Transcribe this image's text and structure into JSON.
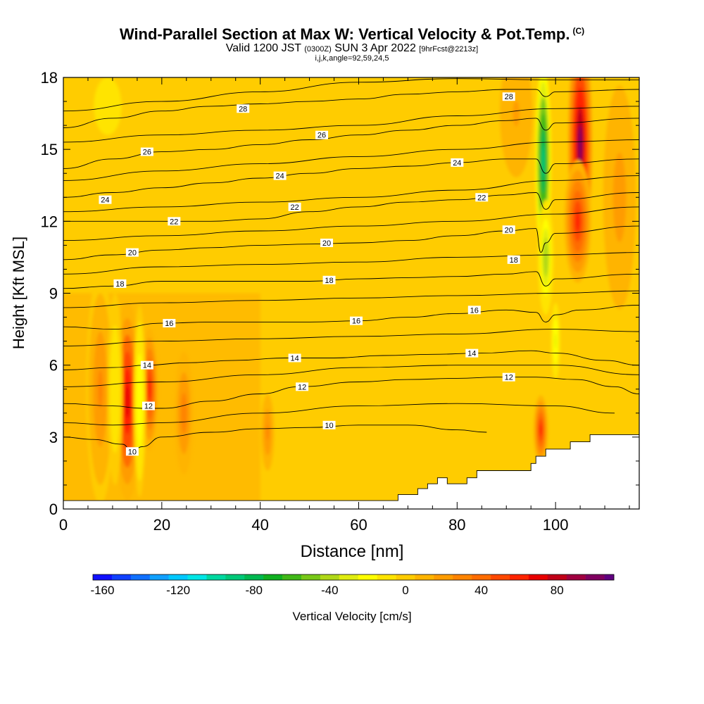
{
  "header": {
    "title": "Wind-Parallel Section at Max W: Vertical Velocity & Pot.Temp.",
    "copyright": "(C)",
    "valid_prefix": "Valid 1200 JST",
    "valid_utc": "(0300Z)",
    "valid_date": "SUN 3 Apr 2022",
    "forecast": "[9hrFcst@2213z]",
    "indices": "i,j,k,angle=92,59,24,5"
  },
  "chart_data": {
    "type": "heatmap",
    "title": "Wind-Parallel Section at Max W: Vertical Velocity & Pot.Temp.",
    "xlabel": "Distance [nm]",
    "ylabel": "Height [Kft MSL]",
    "xlim": [
      0,
      117
    ],
    "ylim": [
      0,
      18
    ],
    "x_ticks": [
      0,
      20,
      40,
      60,
      80,
      100
    ],
    "y_ticks": [
      0,
      3,
      6,
      9,
      12,
      15,
      18
    ],
    "colorbar": {
      "label": "Vertical Velocity [cm/s]",
      "ticks": [
        -160,
        -120,
        -80,
        -40,
        0,
        40,
        80
      ],
      "min": -165,
      "max": 110,
      "step": 10,
      "colors": [
        "#1010ff",
        "#1040ff",
        "#1070ff",
        "#10a0ff",
        "#00c8ff",
        "#00e6e6",
        "#00d8a0",
        "#00c878",
        "#00b850",
        "#10b020",
        "#40b818",
        "#78c818",
        "#b0d818",
        "#e0ec10",
        "#ffff00",
        "#ffe400",
        "#ffcc00",
        "#ffb400",
        "#ff9c00",
        "#ff8400",
        "#ff6c00",
        "#ff4800",
        "#ff2400",
        "#e80000",
        "#c00018",
        "#a00040",
        "#800060",
        "#600080"
      ]
    },
    "updrafts": [
      {
        "x": 13,
        "y": 4.5,
        "peak": 70,
        "width_nm": 1.7,
        "height_kft": 2.6
      },
      {
        "x": 17.5,
        "y": 5.0,
        "peak": 55,
        "width_nm": 1.1,
        "height_kft": 1.6
      },
      {
        "x": 7.5,
        "y": 5.0,
        "peak": 25,
        "width_nm": 1.8,
        "height_kft": 3.0
      },
      {
        "x": 24.5,
        "y": 4.0,
        "peak": 30,
        "width_nm": 1.2,
        "height_kft": 1.6
      },
      {
        "x": 41.5,
        "y": 3.2,
        "peak": 25,
        "width_nm": 1.0,
        "height_kft": 1.2
      },
      {
        "x": 97,
        "y": 3.3,
        "peak": 55,
        "width_nm": 0.9,
        "height_kft": 0.9
      },
      {
        "x": 105,
        "y": 15.2,
        "peak": 95,
        "width_nm": 1.5,
        "height_kft": 3.0
      },
      {
        "x": 104.5,
        "y": 12.0,
        "peak": 60,
        "width_nm": 1.7,
        "height_kft": 1.6
      },
      {
        "x": 113,
        "y": 13.0,
        "peak": 20,
        "width_nm": 2.5,
        "height_kft": 3.5
      },
      {
        "x": 92,
        "y": 16.5,
        "peak": 15,
        "width_nm": 2.5,
        "height_kft": 2.0
      }
    ],
    "downdrafts": [
      {
        "x": 97.5,
        "y": 14.5,
        "peak": -95,
        "width_nm": 1.0,
        "height_kft": 2.5
      },
      {
        "x": 98,
        "y": 10.5,
        "peak": -45,
        "width_nm": 1.0,
        "height_kft": 1.5
      },
      {
        "x": 10.5,
        "y": 5.0,
        "peak": -15,
        "width_nm": 1.0,
        "height_kft": 2.5
      },
      {
        "x": 15.5,
        "y": 4.5,
        "peak": -25,
        "width_nm": 0.8,
        "height_kft": 2.5
      },
      {
        "x": 100,
        "y": 7.0,
        "peak": -30,
        "width_nm": 0.7,
        "height_kft": 1.2
      },
      {
        "x": 9,
        "y": 16.8,
        "peak": -10,
        "width_nm": 3.5,
        "height_kft": 1.5
      }
    ],
    "terrain": [
      [
        0,
        0.35
      ],
      [
        68,
        0.35
      ],
      [
        68,
        0.6
      ],
      [
        72,
        0.6
      ],
      [
        72,
        0.85
      ],
      [
        74,
        0.85
      ],
      [
        74,
        1.05
      ],
      [
        76,
        1.05
      ],
      [
        76,
        1.3
      ],
      [
        78,
        1.3
      ],
      [
        78,
        1.05
      ],
      [
        82,
        1.05
      ],
      [
        82,
        1.3
      ],
      [
        84,
        1.3
      ],
      [
        84,
        1.6
      ],
      [
        95,
        1.6
      ],
      [
        95,
        1.9
      ],
      [
        96,
        1.9
      ],
      [
        96,
        2.2
      ],
      [
        98,
        2.2
      ],
      [
        98,
        2.5
      ],
      [
        103,
        2.5
      ],
      [
        103,
        2.8
      ],
      [
        107,
        2.8
      ],
      [
        107,
        3.1
      ],
      [
        117,
        3.1
      ]
    ],
    "potential_temperature_series": [
      {
        "name": "10",
        "x": [
          0,
          6,
          12,
          14,
          16,
          20,
          30,
          40,
          50,
          60,
          70,
          80,
          86
        ],
        "y": [
          3.0,
          2.9,
          2.7,
          2.4,
          2.6,
          3.0,
          3.2,
          3.35,
          3.4,
          3.5,
          3.5,
          3.3,
          3.2
        ]
      },
      {
        "name": "12",
        "x": [
          0,
          10,
          16,
          20,
          30,
          40,
          48,
          60,
          70,
          80,
          88,
          96,
          104,
          112,
          117
        ],
        "y": [
          4.4,
          4.3,
          4.2,
          4.2,
          4.5,
          4.8,
          5.1,
          5.3,
          5.4,
          5.45,
          5.5,
          5.5,
          5.4,
          5.1,
          4.8
        ]
      },
      {
        "name": "14",
        "x": [
          0,
          10,
          17,
          25,
          35,
          45,
          55,
          65,
          75,
          85,
          95,
          100,
          110,
          117
        ],
        "y": [
          5.8,
          5.9,
          6.0,
          6.1,
          6.2,
          6.3,
          6.3,
          6.4,
          6.45,
          6.5,
          6.6,
          6.5,
          6.2,
          6.0
        ]
      },
      {
        "name": "16",
        "x": [
          0,
          10,
          20,
          30,
          40,
          50,
          60,
          70,
          80,
          90,
          96,
          98,
          100,
          105,
          117
        ],
        "y": [
          7.6,
          7.5,
          7.75,
          7.8,
          7.8,
          7.8,
          7.85,
          8.0,
          8.15,
          8.3,
          8.2,
          7.8,
          8.1,
          8.3,
          8.5
        ]
      },
      {
        "name": "18",
        "x": [
          0,
          10,
          20,
          30,
          40,
          50,
          60,
          70,
          80,
          90,
          96,
          98,
          100,
          117
        ],
        "y": [
          9.2,
          9.3,
          9.5,
          9.5,
          9.5,
          9.5,
          9.6,
          9.65,
          9.7,
          9.8,
          9.9,
          9.3,
          9.6,
          9.8
        ]
      },
      {
        "name": "20",
        "x": [
          0,
          10,
          20,
          30,
          40,
          50,
          60,
          70,
          80,
          90,
          96,
          97,
          98,
          100,
          117
        ],
        "y": [
          10.4,
          10.6,
          10.8,
          10.9,
          11.0,
          11.05,
          11.1,
          11.2,
          11.4,
          11.6,
          11.7,
          10.7,
          11.1,
          11.5,
          11.8
        ]
      },
      {
        "name": "22",
        "x": [
          0,
          10,
          20,
          30,
          40,
          50,
          60,
          70,
          80,
          90,
          96,
          98,
          100,
          117
        ],
        "y": [
          12.0,
          12.0,
          12.0,
          12.0,
          12.1,
          12.4,
          12.6,
          12.8,
          12.9,
          13.1,
          13.2,
          12.5,
          12.9,
          13.2
        ]
      },
      {
        "name": "24",
        "x": [
          0,
          10,
          20,
          30,
          40,
          50,
          60,
          70,
          80,
          90,
          96,
          98,
          100,
          117
        ],
        "y": [
          13.0,
          13.2,
          13.4,
          13.6,
          13.8,
          14.0,
          14.2,
          14.3,
          14.45,
          14.6,
          14.6,
          14.0,
          14.4,
          14.6
        ]
      },
      {
        "name": "26",
        "x": [
          0,
          10,
          20,
          30,
          40,
          50,
          60,
          70,
          80,
          90,
          96,
          98,
          100,
          117
        ],
        "y": [
          14.2,
          14.6,
          14.9,
          15.0,
          15.2,
          15.4,
          15.6,
          15.8,
          16.0,
          16.2,
          16.3,
          15.8,
          16.1,
          16.3
        ]
      },
      {
        "name": "28",
        "x": [
          0,
          10,
          20,
          30,
          40,
          50,
          60,
          70,
          80,
          90,
          96,
          98,
          100,
          117
        ],
        "y": [
          15.9,
          16.3,
          16.6,
          16.8,
          16.9,
          17.0,
          17.1,
          17.3,
          17.4,
          17.5,
          17.5,
          17.2,
          17.4,
          17.5
        ]
      }
    ],
    "unlabeled_isentropes": [
      {
        "x": [
          0,
          20,
          40,
          60,
          80,
          100,
          117
        ],
        "y": [
          16.6,
          17.0,
          17.4,
          17.8,
          17.95,
          17.9,
          17.9
        ]
      },
      {
        "x": [
          0,
          20,
          40,
          60,
          80,
          100,
          117
        ],
        "y": [
          15.3,
          15.6,
          15.8,
          16.0,
          16.4,
          16.7,
          16.8
        ]
      },
      {
        "x": [
          0,
          20,
          40,
          60,
          80,
          100,
          117
        ],
        "y": [
          13.7,
          14.1,
          14.4,
          14.7,
          15.0,
          15.3,
          15.4
        ]
      },
      {
        "x": [
          0,
          20,
          40,
          60,
          80,
          100,
          117
        ],
        "y": [
          12.4,
          12.6,
          12.8,
          13.0,
          13.3,
          13.7,
          13.9
        ]
      },
      {
        "x": [
          0,
          20,
          40,
          60,
          80,
          100,
          117
        ],
        "y": [
          11.2,
          11.4,
          11.6,
          11.8,
          12.0,
          12.3,
          12.6
        ]
      },
      {
        "x": [
          0,
          20,
          40,
          60,
          80,
          100,
          117
        ],
        "y": [
          9.8,
          10.1,
          10.2,
          10.3,
          10.5,
          10.6,
          10.7
        ]
      },
      {
        "x": [
          0,
          20,
          40,
          60,
          80,
          100,
          117
        ],
        "y": [
          8.4,
          8.6,
          8.7,
          8.8,
          8.9,
          9.0,
          9.1
        ]
      },
      {
        "x": [
          0,
          20,
          40,
          60,
          80,
          100,
          117
        ],
        "y": [
          6.8,
          7.0,
          7.1,
          7.2,
          7.3,
          7.5,
          7.4
        ]
      },
      {
        "x": [
          0,
          20,
          40,
          60,
          80,
          100,
          117
        ],
        "y": [
          5.1,
          5.3,
          5.6,
          5.9,
          6.0,
          6.0,
          5.6
        ]
      },
      {
        "x": [
          0,
          10,
          20,
          40,
          60,
          80,
          100,
          112
        ],
        "y": [
          3.6,
          3.5,
          3.6,
          4.0,
          4.3,
          4.4,
          4.3,
          4.0
        ]
      }
    ],
    "contour_labels": [
      {
        "text": "28",
        "x": 36.5,
        "y": 16.7
      },
      {
        "text": "28",
        "x": 90.5,
        "y": 17.2
      },
      {
        "text": "26",
        "x": 17,
        "y": 14.9
      },
      {
        "text": "26",
        "x": 52.5,
        "y": 15.6
      },
      {
        "text": "24",
        "x": 8.5,
        "y": 12.9
      },
      {
        "text": "24",
        "x": 44,
        "y": 13.9
      },
      {
        "text": "24",
        "x": 80,
        "y": 14.45
      },
      {
        "text": "22",
        "x": 22.5,
        "y": 12.0
      },
      {
        "text": "22",
        "x": 47,
        "y": 12.6
      },
      {
        "text": "22",
        "x": 85,
        "y": 13.0
      },
      {
        "text": "20",
        "x": 14,
        "y": 10.7
      },
      {
        "text": "20",
        "x": 53.5,
        "y": 11.1
      },
      {
        "text": "20",
        "x": 90.5,
        "y": 11.65
      },
      {
        "text": "18",
        "x": 11.5,
        "y": 9.4
      },
      {
        "text": "18",
        "x": 54,
        "y": 9.55
      },
      {
        "text": "18",
        "x": 91.5,
        "y": 10.4
      },
      {
        "text": "16",
        "x": 21.5,
        "y": 7.75
      },
      {
        "text": "16",
        "x": 59.5,
        "y": 7.85
      },
      {
        "text": "16",
        "x": 83.5,
        "y": 8.3
      },
      {
        "text": "14",
        "x": 17,
        "y": 6.0
      },
      {
        "text": "14",
        "x": 47,
        "y": 6.3
      },
      {
        "text": "14",
        "x": 83,
        "y": 6.5
      },
      {
        "text": "12",
        "x": 17.3,
        "y": 4.3
      },
      {
        "text": "12",
        "x": 48.5,
        "y": 5.1
      },
      {
        "text": "12",
        "x": 90.5,
        "y": 5.5
      },
      {
        "text": "10",
        "x": 14,
        "y": 2.4
      },
      {
        "text": "10",
        "x": 54,
        "y": 3.5
      }
    ]
  }
}
